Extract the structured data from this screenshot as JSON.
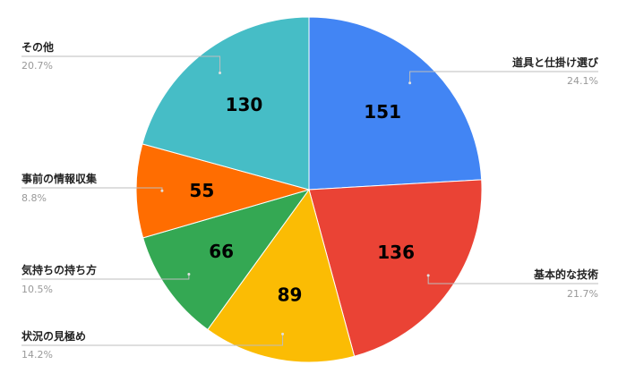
{
  "chart_data": {
    "type": "pie",
    "categories": [
      "道具と仕掛け選び",
      "基本的な技術",
      "状況の見極め",
      "気持ちの持ち方",
      "事前の情報収集",
      "その他"
    ],
    "values": [
      151,
      136,
      89,
      66,
      55,
      130
    ],
    "percent_labels": [
      "24.1%",
      "21.7%",
      "14.2%",
      "10.5%",
      "8.8%",
      "20.7%"
    ],
    "colors": [
      "#4285f4",
      "#ea4335",
      "#fbbc04",
      "#34a853",
      "#ff6d01",
      "#46bdc6"
    ],
    "start_angle": "12 o'clock, clockwise",
    "legend": "labels outside with leader lines"
  }
}
